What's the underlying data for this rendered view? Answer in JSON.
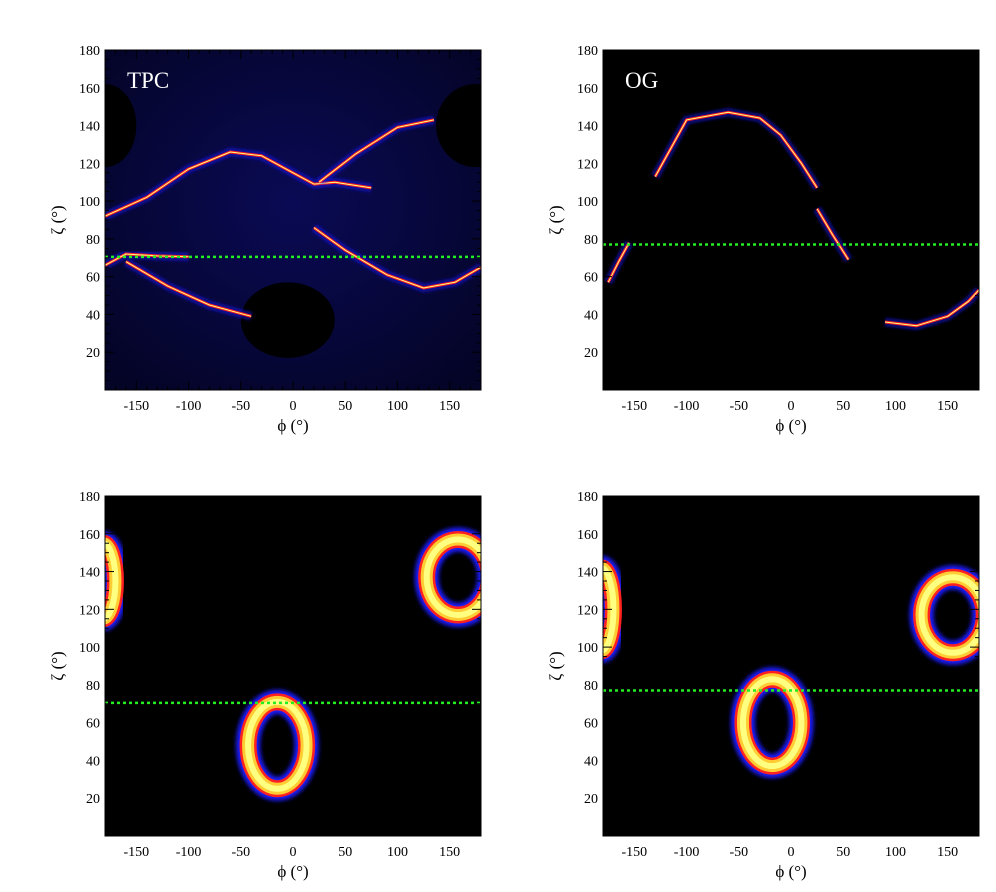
{
  "figure": {
    "colors": {
      "background": "#000000",
      "low": "#1a1aff",
      "mid": "#ff2020",
      "high": "#ffff80",
      "reference_line": "#22ee22"
    },
    "reference_line_style": "dotted"
  },
  "chart_data": [
    {
      "type": "heatmap",
      "title": "TPC",
      "xlabel": "ϕ (°)",
      "ylabel": "ζ (°)",
      "xlim": [
        -180,
        180
      ],
      "ylim": [
        0,
        180
      ],
      "xticks": [
        -150,
        -100,
        -50,
        0,
        50,
        100,
        150
      ],
      "yticks": [
        20,
        40,
        60,
        80,
        100,
        120,
        140,
        160,
        180
      ],
      "background": "dark-blue",
      "reference_line_zeta": 70.5,
      "caustic_curves": [
        [
          [
            -180,
            92
          ],
          [
            -140,
            102
          ],
          [
            -100,
            117
          ],
          [
            -60,
            126
          ],
          [
            -30,
            124
          ],
          [
            0,
            115
          ],
          [
            20,
            109
          ],
          [
            40,
            110
          ],
          [
            75,
            107
          ]
        ],
        [
          [
            20,
            86
          ],
          [
            50,
            74
          ],
          [
            90,
            61
          ],
          [
            125,
            54
          ],
          [
            155,
            57
          ],
          [
            180,
            65
          ]
        ],
        [
          [
            -180,
            66
          ],
          [
            -160,
            72
          ],
          [
            -130,
            71
          ],
          [
            -100,
            70.5
          ]
        ],
        [
          [
            -160,
            68
          ],
          [
            -120,
            55
          ],
          [
            -80,
            45
          ],
          [
            -40,
            39
          ]
        ],
        [
          [
            25,
            110
          ],
          [
            60,
            125
          ],
          [
            100,
            139
          ],
          [
            135,
            143
          ]
        ]
      ],
      "dark_regions": [
        {
          "phi": -5,
          "zeta": 37,
          "r_phi": 45,
          "r_zeta": 20
        },
        {
          "phi": 175,
          "zeta": 140,
          "r_phi": 38,
          "r_zeta": 22
        },
        {
          "phi": -180,
          "zeta": 140,
          "r_phi": 30,
          "r_zeta": 22
        }
      ]
    },
    {
      "type": "heatmap",
      "title": "OG",
      "xlabel": "ϕ (°)",
      "ylabel": "ζ (°)",
      "xlim": [
        -180,
        180
      ],
      "ylim": [
        0,
        180
      ],
      "xticks": [
        -150,
        -100,
        -50,
        0,
        50,
        100,
        150
      ],
      "yticks": [
        20,
        40,
        60,
        80,
        100,
        120,
        140,
        160,
        180
      ],
      "background": "black",
      "reference_line_zeta": 77,
      "caustic_curves": [
        [
          [
            -130,
            113
          ],
          [
            -100,
            143
          ],
          [
            -60,
            147
          ],
          [
            -30,
            144
          ],
          [
            -10,
            135
          ],
          [
            10,
            120
          ],
          [
            25,
            107
          ]
        ],
        [
          [
            -175,
            57
          ],
          [
            -165,
            68
          ],
          [
            -155,
            78
          ]
        ],
        [
          [
            90,
            36
          ],
          [
            120,
            34
          ],
          [
            150,
            39
          ],
          [
            170,
            47
          ],
          [
            180,
            53
          ]
        ],
        [
          [
            25,
            96
          ],
          [
            40,
            82
          ],
          [
            55,
            69
          ]
        ]
      ]
    },
    {
      "type": "heatmap",
      "xlabel": "ϕ (°)",
      "ylabel": "ζ (°)",
      "xlim": [
        -180,
        180
      ],
      "ylim": [
        0,
        180
      ],
      "xticks": [
        -150,
        -100,
        -50,
        0,
        50,
        100,
        150
      ],
      "yticks": [
        20,
        40,
        60,
        80,
        100,
        120,
        140,
        160,
        180
      ],
      "background": "black",
      "reference_line_zeta": 70.5,
      "rings": [
        {
          "phi": -15,
          "zeta": 48,
          "r_phi": 28,
          "r_zeta": 23
        },
        {
          "phi": 158,
          "zeta": 137,
          "r_phi": 30,
          "r_zeta": 20
        },
        {
          "phi": -182,
          "zeta": 135,
          "r_phi": 12,
          "r_zeta": 20
        }
      ]
    },
    {
      "type": "heatmap",
      "xlabel": "ϕ (°)",
      "ylabel": "ζ (°)",
      "xlim": [
        -180,
        180
      ],
      "ylim": [
        0,
        180
      ],
      "xticks": [
        -150,
        -100,
        -50,
        0,
        50,
        100,
        150
      ],
      "yticks": [
        20,
        40,
        60,
        80,
        100,
        120,
        140,
        160,
        180
      ],
      "background": "black",
      "reference_line_zeta": 77,
      "rings": [
        {
          "phi": -18,
          "zeta": 60,
          "r_phi": 28,
          "r_zeta": 23
        },
        {
          "phi": 155,
          "zeta": 117,
          "r_phi": 30,
          "r_zeta": 20
        },
        {
          "phi": -182,
          "zeta": 120,
          "r_phi": 12,
          "r_zeta": 22
        }
      ]
    }
  ]
}
